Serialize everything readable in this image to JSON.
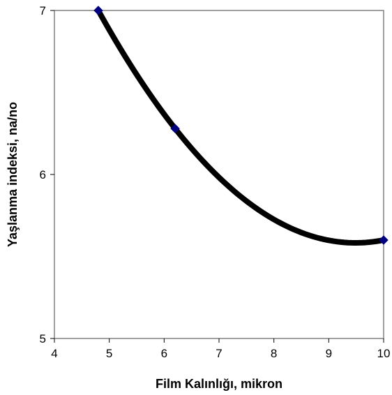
{
  "chart_data": {
    "type": "scatter",
    "title": "",
    "xlabel": "Film Kalınlığı, mikron",
    "ylabel": "Yaşlanma indeksi, na/no",
    "xlim": [
      4,
      10
    ],
    "ylim": [
      5,
      7
    ],
    "xticks": [
      4,
      5,
      6,
      7,
      8,
      9,
      10
    ],
    "yticks": [
      5,
      6,
      7
    ],
    "grid": false,
    "legend": "none",
    "series": [
      {
        "marker": "diamond",
        "marker_color": "#000080",
        "points": [
          {
            "x": 4.8,
            "y": 7.0
          },
          {
            "x": 6.2,
            "y": 6.28
          },
          {
            "x": 10.0,
            "y": 5.6
          }
        ]
      }
    ],
    "trendline": {
      "type": "polynomial",
      "order": 2,
      "color": "#000000"
    }
  }
}
